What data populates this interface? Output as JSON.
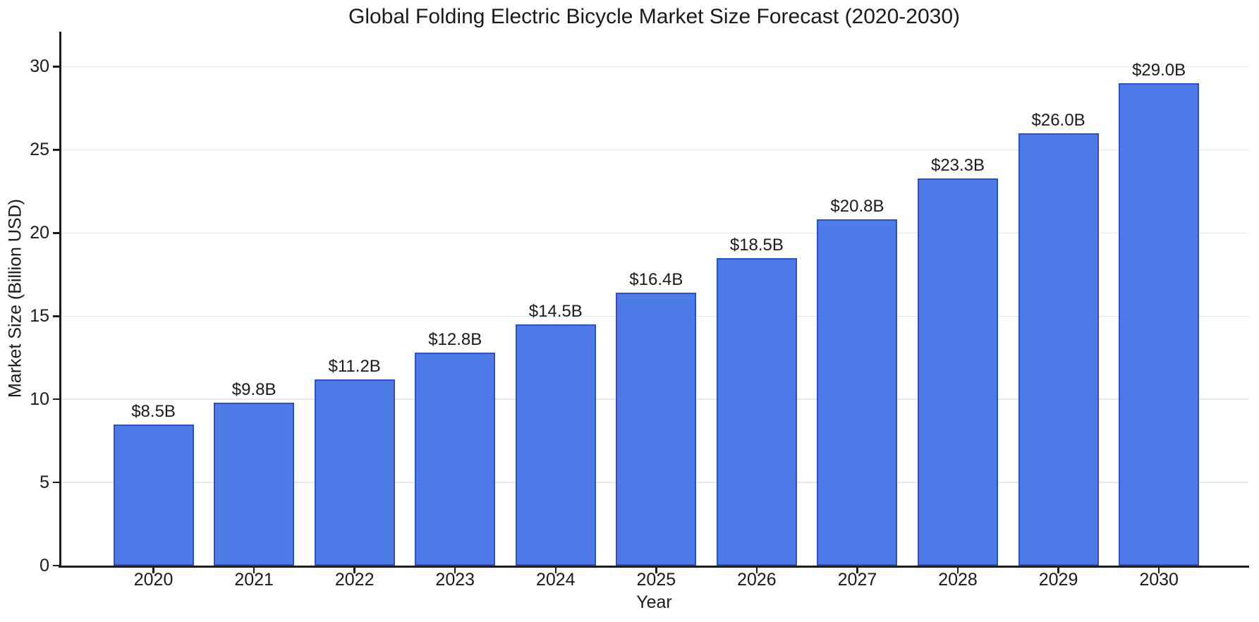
{
  "chart_data": {
    "type": "bar",
    "title": "Global Folding Electric Bicycle Market Size Forecast (2020-2030)",
    "xlabel": "Year",
    "ylabel": "Market Size (Billion USD)",
    "categories": [
      "2020",
      "2021",
      "2022",
      "2023",
      "2024",
      "2025",
      "2026",
      "2027",
      "2028",
      "2029",
      "2030"
    ],
    "values": [
      8.5,
      9.8,
      11.2,
      12.8,
      14.5,
      16.4,
      18.5,
      20.8,
      23.3,
      26.0,
      29.0
    ],
    "bar_labels": [
      "$8.5B",
      "$9.8B",
      "$11.2B",
      "$12.8B",
      "$14.5B",
      "$16.4B",
      "$18.5B",
      "$20.8B",
      "$23.3B",
      "$26.0B",
      "$29.0B"
    ],
    "yticks": [
      0,
      5,
      10,
      15,
      20,
      25,
      30
    ],
    "ylim": [
      0,
      32.1
    ],
    "xlim": [
      -0.93,
      10.89
    ],
    "bar_width_units": 0.8,
    "grid": "horizontal",
    "legend": "none",
    "colors": {
      "bar_fill": "#4D7CE8",
      "bar_edge": "#2B50C8",
      "gridline": "#E8E8E8",
      "spine": "#1C1C1C",
      "text": "#1A1A1A",
      "background": "#FFFFFF"
    }
  }
}
